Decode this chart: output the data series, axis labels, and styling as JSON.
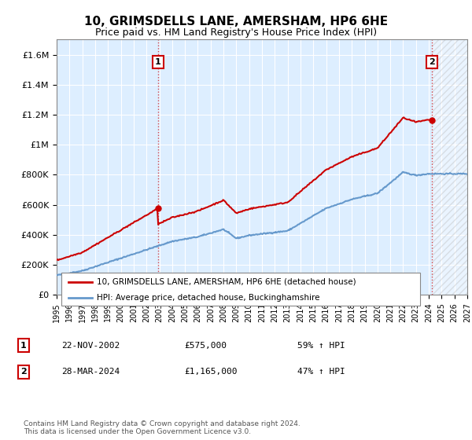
{
  "title": "10, GRIMSDELLS LANE, AMERSHAM, HP6 6HE",
  "subtitle": "Price paid vs. HM Land Registry's House Price Index (HPI)",
  "ylim": [
    0,
    1700000
  ],
  "yticks": [
    0,
    200000,
    400000,
    600000,
    800000,
    1000000,
    1200000,
    1400000,
    1600000
  ],
  "ytick_labels": [
    "£0",
    "£200K",
    "£400K",
    "£600K",
    "£800K",
    "£1M",
    "£1.2M",
    "£1.4M",
    "£1.6M"
  ],
  "xmin_year": 1995,
  "xmax_year": 2027,
  "xticks": [
    1995,
    1996,
    1997,
    1998,
    1999,
    2000,
    2001,
    2002,
    2003,
    2004,
    2005,
    2006,
    2007,
    2008,
    2009,
    2010,
    2011,
    2012,
    2013,
    2014,
    2015,
    2016,
    2017,
    2018,
    2019,
    2020,
    2021,
    2022,
    2023,
    2024,
    2025,
    2026,
    2027
  ],
  "legend_line1_label": "10, GRIMSDELLS LANE, AMERSHAM, HP6 6HE (detached house)",
  "legend_line2_label": "HPI: Average price, detached house, Buckinghamshire",
  "legend_line1_color": "#cc0000",
  "legend_line2_color": "#6699cc",
  "marker1_x": 2002.9,
  "marker1_y": 575000,
  "marker1_label": "1",
  "marker2_x": 2024.25,
  "marker2_y": 1165000,
  "marker2_label": "2",
  "annotation1_date": "22-NOV-2002",
  "annotation1_price": "£575,000",
  "annotation1_hpi": "59% ↑ HPI",
  "annotation2_date": "28-MAR-2024",
  "annotation2_price": "£1,165,000",
  "annotation2_hpi": "47% ↑ HPI",
  "footnote": "Contains HM Land Registry data © Crown copyright and database right 2024.\nThis data is licensed under the Open Government Licence v3.0.",
  "background_color": "#ffffff",
  "plot_bg_color": "#ddeeff",
  "grid_color": "#ffffff",
  "vline1_x": 2002.9,
  "vline2_x": 2024.25,
  "hatch_start_x": 2024.25
}
